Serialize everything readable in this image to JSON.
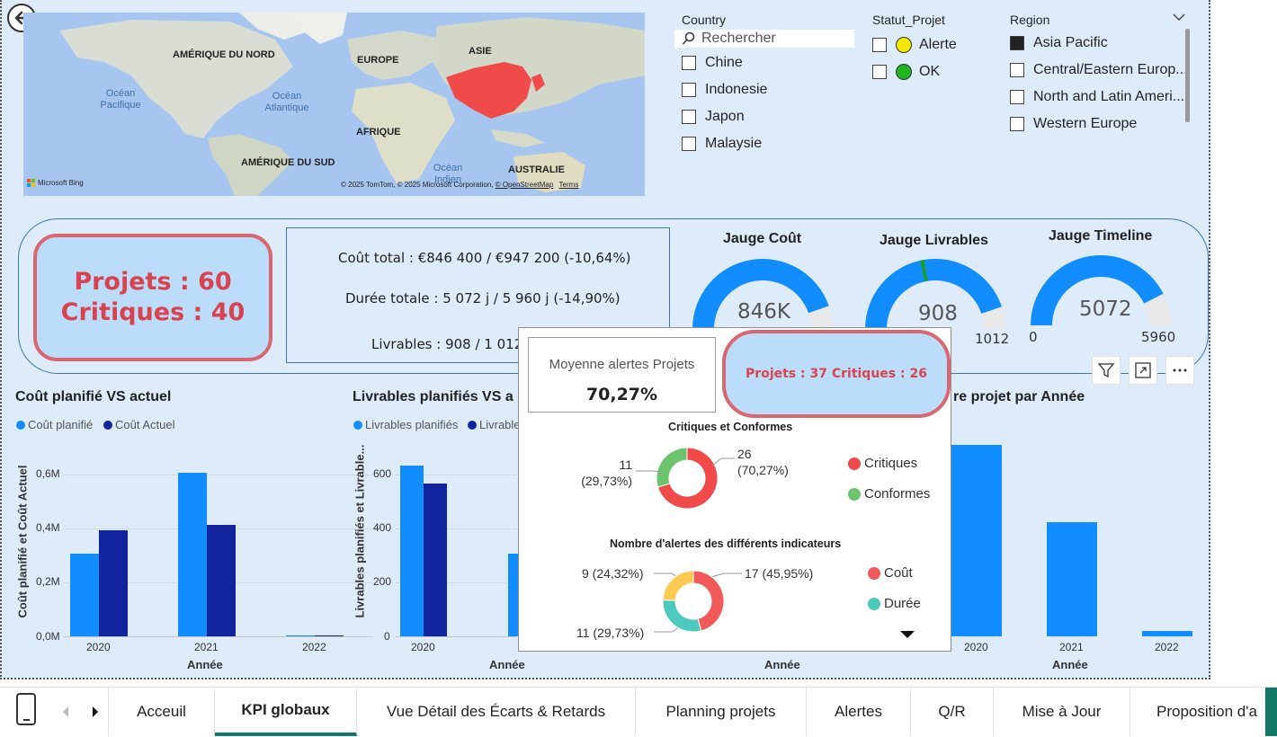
{
  "map": {
    "labels": {
      "north_america": "AMÉRIQUE DU NORD",
      "europe": "EUROPE",
      "asia": "ASIE",
      "africa": "AFRIQUE",
      "south_america": "AMÉRIQUE DU SUD",
      "australia": "AUSTRALIE",
      "pacific": "Océan\nPacifique",
      "atlantic": "Océan\nAtlantique",
      "indian": "Océan\nIndien"
    },
    "bing": "Microsoft Bing",
    "credits": "© 2025 TomTom, © 2025 Microsoft Corporation, ",
    "osm": "© OpenStreetMap",
    "terms": "Terms",
    "highlight_color": "#f04a4a"
  },
  "slicers": {
    "country": {
      "title": "Country",
      "search_placeholder": "Rechercher",
      "items": [
        "Chine",
        "Indonesie",
        "Japon",
        "Malaysie"
      ]
    },
    "statut": {
      "title": "Statut_Projet",
      "items": [
        {
          "label": "Alerte",
          "color": "#f5e600"
        },
        {
          "label": "OK",
          "color": "#21b521"
        }
      ]
    },
    "region": {
      "title": "Region",
      "items": [
        {
          "label": "Asia Pacific",
          "selected": true
        },
        {
          "label": "Central/Eastern Europ...",
          "selected": false
        },
        {
          "label": "North and Latin Ameri...",
          "selected": false
        },
        {
          "label": "Western Europe",
          "selected": false
        }
      ]
    }
  },
  "kpi": {
    "projets": "Projets : 60",
    "critiques": "Critiques : 40",
    "cout_total": "Coût total : €846 400 / €947 200 (-10,64%)",
    "duree_totale": "Durée totale : 5 072 j / 5 960 j (-14,90%)",
    "livrables": "Livrables : 908 / 1 012"
  },
  "gauges": [
    {
      "title": "Jauge Coût",
      "value_label": "846K",
      "value": 846400,
      "max": 947200
    },
    {
      "title": "Jauge Livrables",
      "value_label": "908",
      "min_label": "",
      "max_label": "1012",
      "value": 908,
      "max": 1012,
      "target_fraction": 0.44
    },
    {
      "title": "Jauge Timeline",
      "value_label": "5072",
      "min_label": "0",
      "max_label": "5960",
      "value": 5072,
      "max": 5960
    }
  ],
  "charts": {
    "cout": {
      "title": "Coût planifié VS actuel",
      "legend": [
        "Coût planifié",
        "Coût Actuel"
      ],
      "ylabel": "Coût planifié et Coût Actuel",
      "xlabel": "Année",
      "yticks": [
        "0,6M",
        "0,4M",
        "0,2M",
        "0,0M"
      ],
      "xticks": [
        "2020",
        "2021",
        "2022"
      ]
    },
    "livrables": {
      "title": "Livrables planifiés VS a",
      "legend": [
        "Livrables planifiés",
        "Livrable"
      ],
      "ylabel": "Livrables planifiés et Livrable...",
      "xlabel": "Année",
      "yticks": [
        "600",
        "400",
        "200",
        "0"
      ],
      "xticks": [
        "2020",
        "2021"
      ]
    },
    "middle": {
      "xlabel": "Année"
    },
    "projet": {
      "title": "re projet par Année",
      "xlabel": "Année",
      "xticks": [
        "2020",
        "2021",
        "2022"
      ]
    }
  },
  "chart_data": [
    {
      "type": "bar",
      "title": "Coût planifié VS actuel",
      "xlabel": "Année",
      "ylabel": "Coût planifié et Coût Actuel",
      "categories": [
        "2020",
        "2021",
        "2022"
      ],
      "series": [
        {
          "name": "Coût planifié",
          "values": [
            0.32,
            0.63,
            0.004
          ]
        },
        {
          "name": "Coût Actuel",
          "values": [
            0.41,
            0.43,
            0.004
          ]
        }
      ],
      "ylim": [
        0,
        0.7
      ],
      "colors": [
        "#118dff",
        "#12239e"
      ]
    },
    {
      "type": "bar",
      "title": "Livrables planifiés VS a",
      "xlabel": "Année",
      "ylabel": "Livrables planifiés et Livrable...",
      "categories": [
        "2020",
        "2021"
      ],
      "series": [
        {
          "name": "Livrables planifiés",
          "values": [
            660,
            320
          ]
        },
        {
          "name": "Livrable",
          "values": [
            590,
            280
          ]
        }
      ],
      "ylim": [
        0,
        700
      ],
      "colors": [
        "#118dff",
        "#12239e"
      ]
    },
    {
      "type": "bar",
      "title": "re projet par Année",
      "xlabel": "Année",
      "categories": [
        "2020",
        "2021",
        "2022"
      ],
      "values": [
        37,
        22,
        1
      ],
      "colors": [
        "#118dff"
      ]
    },
    {
      "type": "pie",
      "title": "Critiques et Conformes",
      "categories": [
        "Critiques",
        "Conformes"
      ],
      "values": [
        26,
        11
      ],
      "labels": [
        "26\n(70,27%)",
        "11\n(29,73%)"
      ],
      "colors": [
        "#f04a4a",
        "#6cc46c"
      ]
    },
    {
      "type": "pie",
      "title": "Nombre d'alertes des différents indicateurs",
      "categories": [
        "Coût",
        "Durée",
        ""
      ],
      "values": [
        17,
        11,
        9
      ],
      "labels": [
        "17 (45,95%)",
        "11 (29,73%)",
        "9 (24,32%)"
      ],
      "colors": [
        "#f25a5a",
        "#4ec9bd",
        "#fdcb52"
      ]
    }
  ],
  "tooltip": {
    "avg_title": "Moyenne alertes Projets",
    "avg_value": "70,27%",
    "projets": "Projets : 37 Critiques : 26",
    "donut1_title": "Critiques et Conformes",
    "donut1_label_a": "26\n(70,27%)",
    "donut1_label_b": "11\n(29,73%)",
    "donut1_legend": [
      "Critiques",
      "Conformes"
    ],
    "donut2_title": "Nombre d'alertes des différents indicateurs",
    "donut2_label_a": "17 (45,95%)",
    "donut2_label_b": "11 (29,73%)",
    "donut2_label_c": "9 (24,32%)",
    "donut2_legend": [
      "Coût",
      "Durée"
    ]
  },
  "tabs": [
    {
      "label": "Acceuil",
      "active": false
    },
    {
      "label": "KPI globaux",
      "active": true
    },
    {
      "label": "Vue Détail des Écarts & Retards",
      "active": false
    },
    {
      "label": "Planning projets",
      "active": false
    },
    {
      "label": "Alertes",
      "active": false
    },
    {
      "label": "Q/R",
      "active": false
    },
    {
      "label": "Mise à Jour",
      "active": false
    },
    {
      "label": "Proposition d'a",
      "active": false
    }
  ],
  "colors": {
    "accent_blue": "#118dff",
    "dark_blue": "#12239e",
    "critical_red": "#d9434d",
    "tab_active": "#117865"
  }
}
